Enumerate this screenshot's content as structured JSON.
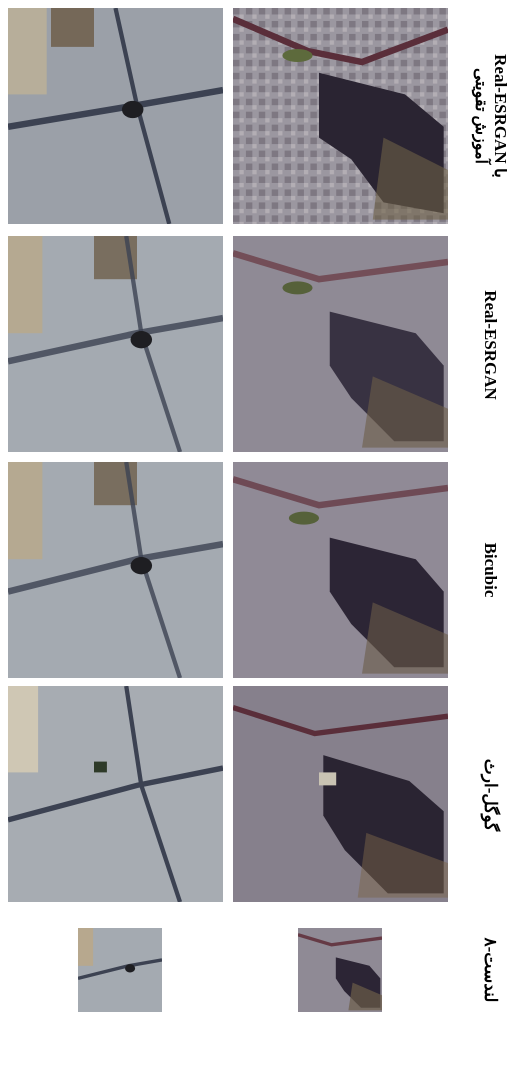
{
  "figure": {
    "columns": [
      {
        "id": "esrgan-trained",
        "label_line1": "Real-ESRGAN با",
        "label_line2": "آموزش تقویتی"
      },
      {
        "id": "esrgan",
        "label": "Real-ESRGAN"
      },
      {
        "id": "bicubic",
        "label": "Bicubic"
      },
      {
        "id": "google-earth",
        "label": "گوگل-ارث"
      },
      {
        "id": "landsat8",
        "label": "لندست-۸"
      }
    ],
    "rows": [
      "city-lake-scene",
      "dense-urban-scene"
    ],
    "colors": {
      "urban_gray": "#9aa0a8",
      "road_dark": "#3c4252",
      "water_dark": "#2a2432",
      "farmland": "#7a6448",
      "vegetation": "#5d6a3c",
      "urban_tan": "#b7ae9a"
    }
  }
}
